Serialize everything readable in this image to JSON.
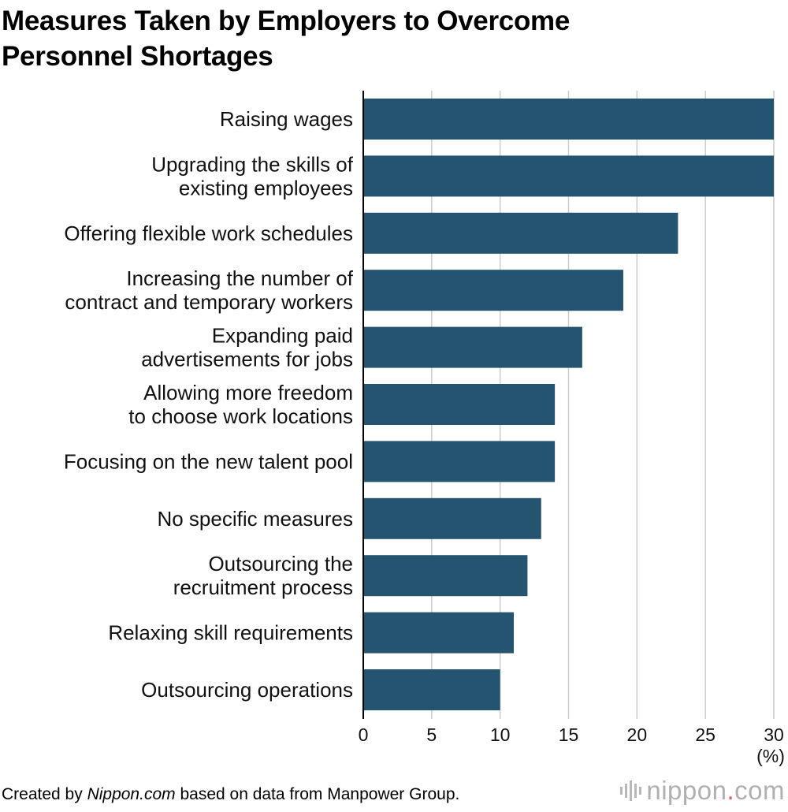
{
  "title": {
    "lines": [
      "Measures Taken by Employers to Overcome",
      "Personnel Shortages"
    ]
  },
  "chart_data": {
    "type": "bar",
    "orientation": "horizontal",
    "categories": [
      [
        "Raising wages"
      ],
      [
        "Upgrading the skills of",
        "existing employees"
      ],
      [
        "Offering flexible work schedules"
      ],
      [
        "Increasing the number of",
        "contract and temporary workers"
      ],
      [
        "Expanding paid",
        "advertisements for jobs"
      ],
      [
        "Allowing more freedom",
        "to choose work locations"
      ],
      [
        "Focusing on the new talent pool"
      ],
      [
        "No specific measures"
      ],
      [
        "Outsourcing the",
        "recruitment process"
      ],
      [
        "Relaxing skill requirements"
      ],
      [
        "Outsourcing operations"
      ]
    ],
    "values": [
      30,
      30,
      23,
      19,
      16,
      14,
      14,
      13,
      12,
      11,
      10
    ],
    "xlim": [
      0,
      30
    ],
    "xticks": [
      "0",
      "5",
      "10",
      "15",
      "20",
      "25",
      "30"
    ],
    "xunit": "(%)",
    "bar_color": "#245470",
    "grid": true,
    "grid_color": "#cccccc"
  },
  "footer": {
    "prefix": "Created by ",
    "source_name": "Nippon.com",
    "suffix": " based on data from Manpower Group."
  },
  "logo": {
    "name": "nippon",
    "dot": ".",
    "tld": "com"
  }
}
